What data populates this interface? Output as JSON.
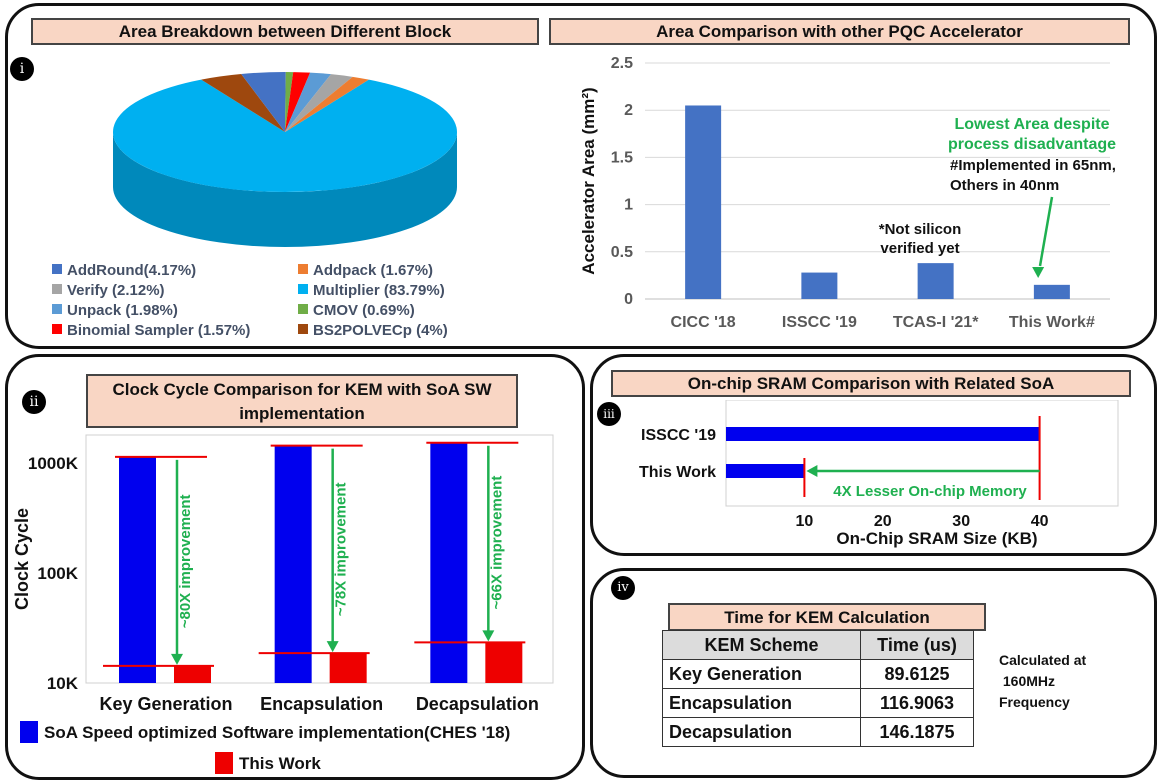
{
  "colors": {
    "blue": "#4472c4",
    "pure_blue": "#0000ee",
    "red": "#ee0000",
    "green": "#1fb050",
    "title_bg": "#f9d6c4"
  },
  "panel1": {
    "badge": "i",
    "pie_title": "Area Breakdown between Different Block",
    "bar_title": "Area Comparison with other PQC Accelerator"
  },
  "panel2": {
    "badge": "ii",
    "title_line1": "Clock Cycle Comparison for KEM with SoA SW",
    "title_line2": "implementation",
    "legend_sw": "SoA Speed optimized Software implementation(CHES '18)",
    "legend_hw": "This Work"
  },
  "panel3": {
    "badge": "iii",
    "title": "On-chip SRAM Comparison with Related SoA"
  },
  "panel4": {
    "badge": "iv",
    "table_title": "Time for KEM Calculation",
    "headers": [
      "KEM Scheme",
      "Time (us)"
    ],
    "rows": [
      {
        "scheme": "Key Generation",
        "time": "89.6125"
      },
      {
        "scheme": "Encapsulation",
        "time": "116.9063"
      },
      {
        "scheme": "Decapsulation",
        "time": "146.1875"
      }
    ],
    "note_lines": [
      "Calculated at",
      " 160MHz",
      "Frequency"
    ]
  },
  "chart_data": [
    {
      "type": "pie",
      "title": "Area Breakdown between Different Block",
      "labels": [
        "Multiplier",
        "AddRound",
        "Addpack",
        "Verify",
        "Unpack",
        "CMOV",
        "Binomial Sampler",
        "BS2POLVECp"
      ],
      "values": [
        83.79,
        4.17,
        1.67,
        2.12,
        1.98,
        0.69,
        1.57,
        4.0
      ],
      "legend": [
        "AddRound(4.17%)",
        "Addpack (1.67%)",
        "Verify (2.12%)",
        "Multiplier (83.79%)",
        "Unpack (1.98%)",
        "CMOV (0.69%)",
        "Binomial Sampler (1.57%)",
        "BS2POLVECp (4%)"
      ],
      "colors": [
        "#00b0f0",
        "#4472c4",
        "#ed7d31",
        "#a5a5a5",
        "#5b9bd5",
        "#70ad47",
        "#ff0000",
        "#9e480e"
      ]
    },
    {
      "type": "bar",
      "title": "Area Comparison with other PQC Accelerator",
      "categories": [
        "CICC '18",
        "ISSCC '19",
        "TCAS-I '21*",
        "This Work#"
      ],
      "values": [
        2.05,
        0.28,
        0.38,
        0.15
      ],
      "ylabel": "Accelerator Area (mm²)",
      "ylim": [
        0,
        2.5
      ],
      "yticks": [
        0,
        0.5,
        1,
        1.5,
        2,
        2.5
      ],
      "ytick_labels": [
        "0",
        "0.5",
        "1",
        "1.5",
        "2",
        "2.5"
      ],
      "annotations": {
        "not_silicon_1": "*Not silicon",
        "not_silicon_2": "verified yet",
        "lowest_1": "Lowest Area despite",
        "lowest_2": "process disadvantage",
        "impl_1": "#Implemented in 65nm,",
        "impl_2": "Others in 40nm"
      }
    },
    {
      "type": "bar",
      "title": "Clock Cycle Comparison for KEM with SoA SW implementation",
      "categories": [
        "Key Generation",
        "Encapsulation",
        "Decapsulation"
      ],
      "yscale": "log",
      "ylim": [
        10000,
        1800000
      ],
      "ylabel": "Clock Cycle",
      "yticks": [
        10000,
        100000,
        1000000
      ],
      "ytick_labels": [
        "10K",
        "100K",
        "1000K"
      ],
      "series": [
        {
          "name": "SoA Speed optimized Software implementation(CHES '18)",
          "values": [
            1140000,
            1440000,
            1530000
          ]
        },
        {
          "name": "This Work",
          "values": [
            14300,
            18700,
            23400
          ]
        }
      ],
      "improvements": [
        "~80X improvement",
        "~78X improvement",
        "~66X improvement"
      ]
    },
    {
      "type": "bar",
      "orientation": "horizontal",
      "title": "On-chip SRAM Comparison with Related SoA",
      "categories": [
        "ISSCC '19",
        "This Work"
      ],
      "values": [
        40,
        10
      ],
      "xlabel": "On-Chip SRAM Size (KB)",
      "xlim": [
        0,
        50
      ],
      "xticks": [
        10,
        20,
        30,
        40
      ],
      "xtick_labels": [
        "10",
        "20",
        "30",
        "40"
      ],
      "annotation": "4X Lesser On-chip Memory"
    }
  ]
}
